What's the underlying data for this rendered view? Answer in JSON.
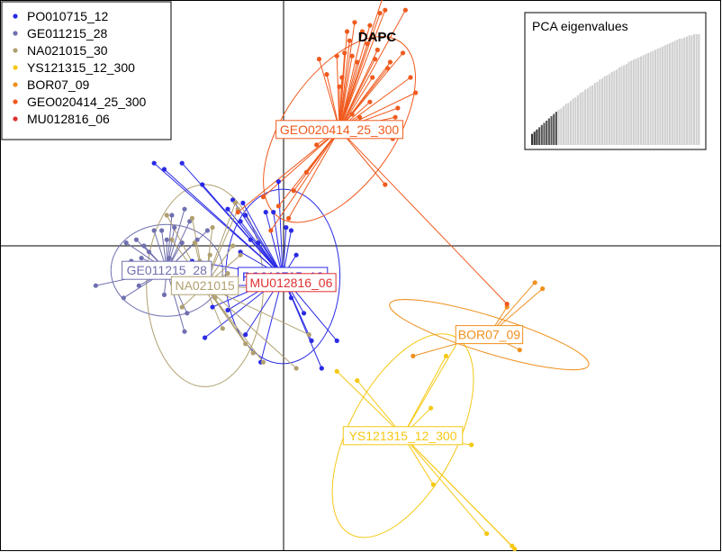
{
  "chart_data": {
    "type": "scatter",
    "title": "DAPC",
    "axes": {
      "x_range": [
        -1.0,
        1.0
      ],
      "y_range": [
        -1.0,
        1.0
      ],
      "origin_lines": true
    },
    "legend": {
      "placement": "top-left"
    },
    "series": [
      {
        "name": "PO010715_12",
        "color": "#2a2ae6",
        "label": "PO010715_12",
        "center": [
          -0.003,
          -0.1
        ],
        "ellipse": {
          "rx": 0.225,
          "ry": 0.285,
          "angle": 0
        },
        "points": [
          [
            -0.51,
            0.27
          ],
          [
            -0.47,
            0.25
          ],
          [
            -0.4,
            0.27
          ],
          [
            -0.32,
            0.2
          ],
          [
            -0.22,
            0.12
          ],
          [
            -0.2,
            0.15
          ],
          [
            -0.17,
            0.08
          ],
          [
            -0.16,
            0.14
          ],
          [
            -0.15,
            0.1
          ],
          [
            -0.13,
            0.02
          ],
          [
            -0.1,
            0.01
          ],
          [
            -0.07,
            0.11
          ],
          [
            -0.04,
            0.11
          ],
          [
            -0.02,
            0.21
          ],
          [
            0.01,
            0.06
          ],
          [
            0.03,
            0.05
          ],
          [
            0.05,
            -0.03
          ],
          [
            0.05,
            -0.11
          ],
          [
            0.08,
            -0.22
          ],
          [
            0.11,
            -0.31
          ],
          [
            0.15,
            -0.4
          ],
          [
            0.21,
            -0.31
          ],
          [
            -0.09,
            -0.38
          ],
          [
            -0.15,
            -0.29
          ],
          [
            -0.22,
            -0.21
          ],
          [
            -0.28,
            -0.2
          ],
          [
            -0.31,
            -0.3
          ],
          [
            -0.34,
            -0.14
          ],
          [
            -0.36,
            -0.05
          ],
          [
            -0.17,
            -0.02
          ],
          [
            -0.12,
            -0.08
          ],
          [
            0.03,
            -0.17
          ]
        ]
      },
      {
        "name": "GE011215_28",
        "color": "#7070b0",
        "label": "GE011215_28",
        "center": [
          -0.46,
          -0.08
        ],
        "ellipse": {
          "rx": 0.22,
          "ry": 0.15,
          "angle": 0
        },
        "points": [
          [
            -0.62,
            0.01
          ],
          [
            -0.58,
            0.02
          ],
          [
            -0.55,
            0.0
          ],
          [
            -0.53,
            -0.02
          ],
          [
            -0.51,
            0.05
          ],
          [
            -0.48,
            0.05
          ],
          [
            -0.46,
            0.02
          ],
          [
            -0.45,
            -0.04
          ],
          [
            -0.44,
            0.1
          ],
          [
            -0.43,
            0.06
          ],
          [
            -0.41,
            -0.1
          ],
          [
            -0.4,
            0.01
          ],
          [
            -0.39,
            0.12
          ],
          [
            -0.37,
            0.08
          ],
          [
            -0.36,
            -0.14
          ],
          [
            -0.34,
            0.02
          ],
          [
            -0.33,
            -0.05
          ],
          [
            -0.31,
            -0.15
          ],
          [
            -0.56,
            -0.04
          ],
          [
            -0.47,
            -0.16
          ],
          [
            -0.52,
            -0.1
          ],
          [
            -0.6,
            -0.05
          ],
          [
            -0.3,
            0.05
          ],
          [
            -0.38,
            -0.22
          ],
          [
            -0.39,
            -0.28
          ],
          [
            -0.74,
            -0.13
          ],
          [
            -0.63,
            -0.17
          ],
          [
            -0.57,
            -0.13
          ]
        ]
      },
      {
        "name": "NA021015_30",
        "color": "#b0a070",
        "label": "NA021015",
        "center": [
          -0.31,
          -0.13
        ],
        "ellipse": {
          "rx": 0.23,
          "ry": 0.33,
          "angle": 0
        },
        "points": [
          [
            -0.46,
            0.1
          ],
          [
            -0.44,
            0.02
          ],
          [
            -0.42,
            -0.11
          ],
          [
            -0.4,
            -0.2
          ],
          [
            -0.37,
            -0.08
          ],
          [
            -0.35,
            0.01
          ],
          [
            -0.33,
            -0.05
          ],
          [
            -0.31,
            -0.07
          ],
          [
            -0.29,
            -0.03
          ],
          [
            -0.27,
            -0.17
          ],
          [
            -0.25,
            -0.12
          ],
          [
            -0.22,
            -0.09
          ],
          [
            -0.2,
            0.0
          ],
          [
            -0.19,
            0.14
          ],
          [
            -0.17,
            -0.03
          ],
          [
            -0.15,
            -0.32
          ],
          [
            -0.12,
            -0.35
          ],
          [
            -0.08,
            -0.38
          ],
          [
            -0.05,
            -0.14
          ],
          [
            0.05,
            -0.4
          ],
          [
            0.1,
            -0.29
          ],
          [
            -0.28,
            0.06
          ],
          [
            -0.36,
            0.09
          ],
          [
            -0.24,
            -0.27
          ],
          [
            -0.18,
            0.12
          ]
        ]
      },
      {
        "name": "YS121315_12_300",
        "color": "#f5c815",
        "label": "YS121315_12_300",
        "center": [
          0.47,
          -0.62
        ],
        "ellipse": {
          "rx": 0.44,
          "ry": 0.175,
          "angle": 62
        },
        "points": [
          [
            0.21,
            -0.41
          ],
          [
            0.29,
            -0.44
          ],
          [
            0.58,
            -0.53
          ],
          [
            0.63,
            -0.63
          ],
          [
            0.71,
            -0.28
          ],
          [
            0.74,
            -0.65
          ],
          [
            0.8,
            -0.94
          ],
          [
            0.9,
            -0.98
          ],
          [
            0.91,
            -0.99
          ],
          [
            0.33,
            -0.6
          ],
          [
            0.64,
            -0.36
          ],
          [
            0.59,
            -0.78
          ]
        ]
      },
      {
        "name": "BOR07_09",
        "color": "#f0901e",
        "label": "BOR07_09",
        "center": [
          0.81,
          -0.29
        ],
        "ellipse": {
          "rx": 0.41,
          "ry": 0.06,
          "angle": -17
        },
        "points": [
          [
            0.51,
            -0.36
          ],
          [
            1.02,
            -0.14
          ],
          [
            0.99,
            -0.12
          ],
          [
            0.93,
            -0.34
          ],
          [
            0.69,
            -0.29
          ],
          [
            0.75,
            -0.3
          ],
          [
            0.88,
            -0.2
          ]
        ]
      },
      {
        "name": "GEO020414_25_300",
        "color": "#f05a1e",
        "label": "GEO020414_25_300",
        "center": [
          0.22,
          0.38
        ],
        "ellipse": {
          "rx": 0.42,
          "ry": 0.18,
          "angle": 55
        },
        "points": [
          [
            0.14,
            0.61
          ],
          [
            0.17,
            0.56
          ],
          [
            0.21,
            0.62
          ],
          [
            0.22,
            0.52
          ],
          [
            0.23,
            0.55
          ],
          [
            0.24,
            0.63
          ],
          [
            0.25,
            0.7
          ],
          [
            0.26,
            0.67
          ],
          [
            0.27,
            0.62
          ],
          [
            0.28,
            0.73
          ],
          [
            0.29,
            0.6
          ],
          [
            0.31,
            0.7
          ],
          [
            0.33,
            0.66
          ],
          [
            0.34,
            0.72
          ],
          [
            0.35,
            0.55
          ],
          [
            0.36,
            0.61
          ],
          [
            0.37,
            0.64
          ],
          [
            0.38,
            0.76
          ],
          [
            0.39,
            0.81
          ],
          [
            0.4,
            0.77
          ],
          [
            0.41,
            0.58
          ],
          [
            0.42,
            0.6
          ],
          [
            0.47,
            0.63
          ],
          [
            0.48,
            0.77
          ],
          [
            0.5,
            0.55
          ],
          [
            0.52,
            0.5
          ],
          [
            0.34,
            0.47
          ],
          [
            0.3,
            0.42
          ],
          [
            0.27,
            0.43
          ],
          [
            0.2,
            0.38
          ],
          [
            0.13,
            0.33
          ],
          [
            0.09,
            0.24
          ],
          [
            0.04,
            0.18
          ],
          [
            -0.08,
            0.16
          ],
          [
            -0.02,
            0.13
          ],
          [
            0.02,
            0.09
          ],
          [
            0.4,
            0.2
          ],
          [
            0.43,
            0.35
          ],
          [
            0.44,
            0.42
          ],
          [
            0.45,
            0.45
          ],
          [
            -0.18,
            0.11
          ],
          [
            -0.05,
            0.05
          ],
          [
            0.88,
            -0.19
          ]
        ]
      },
      {
        "name": "MU012816_06",
        "color": "#e03030",
        "label": "MU012816_06",
        "center": [
          0.03,
          -0.12
        ],
        "ellipse": null,
        "points": []
      }
    ],
    "eigenvalues": {
      "label": "PCA eigenvalues",
      "retained": 11,
      "values": [
        0.1,
        0.12,
        0.14,
        0.16,
        0.18,
        0.2,
        0.22,
        0.24,
        0.26,
        0.28,
        0.3,
        0.32,
        0.33,
        0.35,
        0.37,
        0.38,
        0.4,
        0.42,
        0.43,
        0.45,
        0.47,
        0.48,
        0.5,
        0.51,
        0.53,
        0.54,
        0.56,
        0.57,
        0.59,
        0.6,
        0.62,
        0.63,
        0.64,
        0.66,
        0.67,
        0.68,
        0.7,
        0.71,
        0.72,
        0.73,
        0.75,
        0.76,
        0.77,
        0.78,
        0.79,
        0.8,
        0.81,
        0.82,
        0.83,
        0.84,
        0.85,
        0.86,
        0.87,
        0.88,
        0.89,
        0.9,
        0.91,
        0.92,
        0.93,
        0.94,
        0.95,
        0.96,
        0.96,
        0.97,
        0.98,
        0.99,
        0.99,
        1.0,
        1.0,
        1.0
      ]
    }
  }
}
